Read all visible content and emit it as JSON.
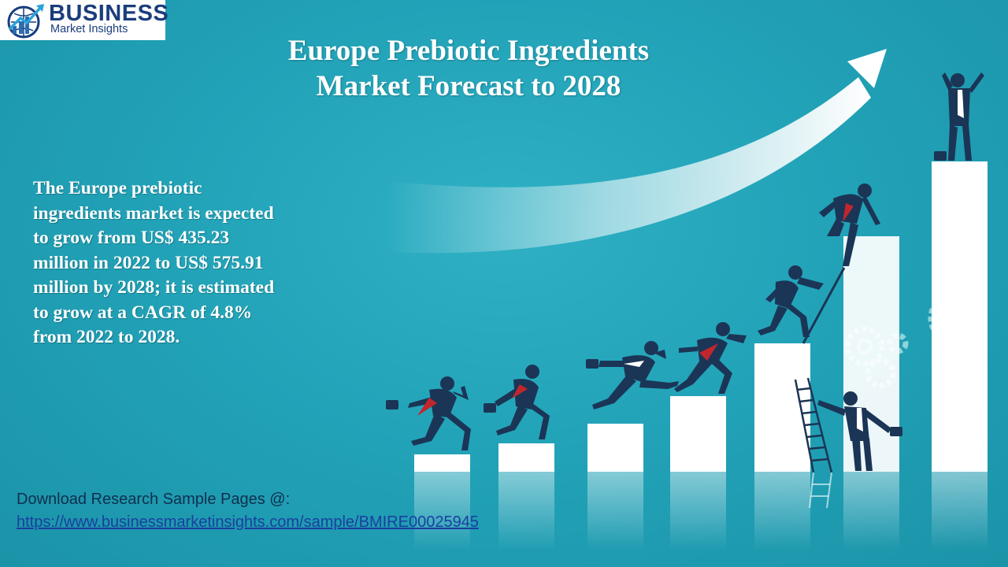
{
  "logo": {
    "name": "BUSINESS",
    "tagline": "Market Insights"
  },
  "title": {
    "line1": "Europe Prebiotic Ingredients",
    "line2": "Market Forecast to 2028"
  },
  "summary": {
    "lines": [
      "The Europe prebiotic",
      "ingredients market is expected",
      "to grow from US$ 435.23",
      "million in 2022 to US$ 575.91",
      "million by 2028; it is estimated",
      "to grow at a CAGR of 4.8%",
      "from 2022 to 2028."
    ]
  },
  "download": {
    "label": "Download Research Sample Pages @:",
    "url": "https://www.businessmarketinsights.com/sample/BMIRE00025945"
  },
  "colors": {
    "background": "#22a3b8",
    "figure_suit": "#1b3556",
    "tie": "#c0272d",
    "logo_blue": "#1a3d7c"
  }
}
